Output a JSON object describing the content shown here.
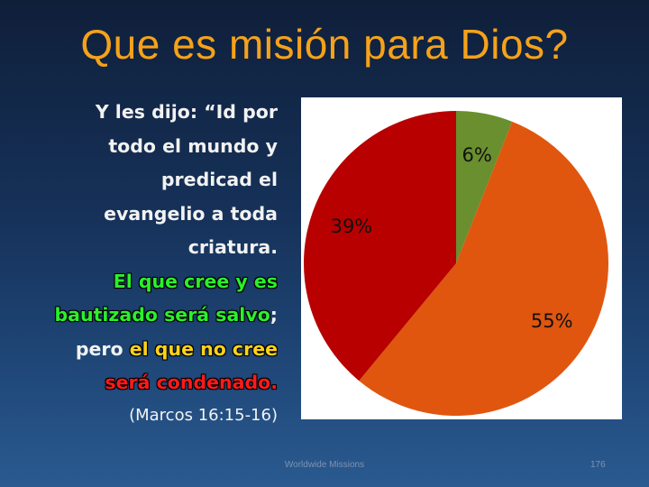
{
  "slide": {
    "title": "Que es misión para Dios?",
    "footer": "Worldwide Missions",
    "number": "176"
  },
  "quote": {
    "line1": "Y les dijo: “Id por",
    "line2": "todo el mundo y",
    "line3": "predicad el",
    "line4": "evangelio a toda",
    "line5": "criatura.",
    "line6": "El que cree y es",
    "line7_green": "bautizado será salvo",
    "line7_tail": ";",
    "line8_head": "pero ",
    "line8_yellow": "el que no cree",
    "line9_red": "será condenado.",
    "reference": "(Marcos 16:15-16)"
  },
  "colors": {
    "title": "#f5a21a",
    "highlight_green": "#2bf02b",
    "highlight_yellow": "#ffd21a",
    "highlight_red": "#ff1a1a"
  },
  "chart_data": {
    "type": "pie",
    "categories": [
      "",
      "",
      ""
    ],
    "values": [
      6,
      55,
      39
    ],
    "labels": [
      "6%",
      "55%",
      "39%"
    ],
    "colors": [
      "#6a8f2e",
      "#e0560f",
      "#b80000"
    ],
    "start": "top, clockwise",
    "legend": "none"
  }
}
